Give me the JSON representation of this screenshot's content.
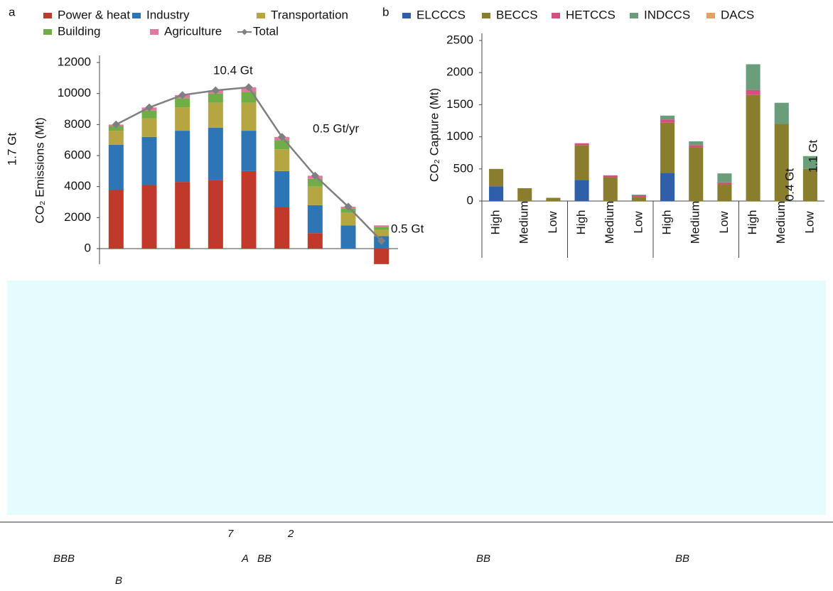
{
  "chart_data": [
    {
      "type": "bar",
      "panel": "a",
      "stacked": true,
      "ylabel": "CO₂ Emissions (Mt)",
      "categories": [
        null,
        null,
        null,
        null,
        null,
        null,
        null,
        null,
        null
      ],
      "series": [
        {
          "name": "Power & heat",
          "color": "#c0392b",
          "values": [
            3800,
            4100,
            4300,
            4400,
            5000,
            2700,
            1000,
            0,
            -1000
          ]
        },
        {
          "name": "Industry",
          "color": "#2e75b6",
          "values": [
            2900,
            3100,
            3300,
            3400,
            2600,
            2300,
            1800,
            1500,
            800
          ]
        },
        {
          "name": "Transportation",
          "color": "#b5a642",
          "values": [
            900,
            1200,
            1500,
            1600,
            1800,
            1400,
            1200,
            800,
            400
          ]
        },
        {
          "name": "Building",
          "color": "#70ad47",
          "values": [
            300,
            500,
            600,
            600,
            700,
            600,
            500,
            300,
            200
          ]
        },
        {
          "name": "Agriculture",
          "color": "#e377a0",
          "values": [
            100,
            200,
            200,
            200,
            300,
            200,
            200,
            100,
            100
          ]
        },
        {
          "name": "Total",
          "color": "#7f7f7f",
          "mark": "line",
          "values": [
            8000,
            9100,
            9900,
            10200,
            10400,
            7200,
            4700,
            2700,
            500
          ]
        }
      ],
      "ylim": [
        -1000,
        12000
      ],
      "yticks": [
        0,
        2000,
        4000,
        6000,
        8000,
        10000,
        12000
      ],
      "annotations": [
        "10.4 Gt",
        "0.5 Gt/yr",
        "0.5 Gt",
        "1.7 Gt"
      ]
    },
    {
      "type": "bar",
      "panel": "b",
      "stacked": true,
      "ylabel": "CO₂ Capture (Mt)",
      "categories": [
        "High",
        "Medium",
        "Low",
        "High",
        "Medium",
        "Low",
        "High",
        "Medium",
        "Low",
        "High",
        "Medium",
        "Low"
      ],
      "series": [
        {
          "name": "ELCCCS",
          "color": "#2e5fa8",
          "values": [
            230,
            0,
            0,
            330,
            0,
            0,
            440,
            0,
            0,
            0,
            0,
            0
          ]
        },
        {
          "name": "BECCS",
          "color": "#8b7d2e",
          "values": [
            270,
            200,
            50,
            540,
            370,
            60,
            780,
            830,
            260,
            1650,
            1200,
            500
          ]
        },
        {
          "name": "HETCCS",
          "color": "#d94f7c",
          "values": [
            0,
            0,
            0,
            30,
            30,
            30,
            50,
            40,
            30,
            80,
            0,
            0
          ]
        },
        {
          "name": "INDCCS",
          "color": "#6a9e7a",
          "values": [
            0,
            0,
            0,
            0,
            0,
            10,
            60,
            60,
            140,
            400,
            330,
            200
          ]
        },
        {
          "name": "DACS",
          "color": "#e8a060",
          "values": [
            0,
            0,
            0,
            0,
            0,
            0,
            0,
            0,
            0,
            0,
            0,
            0
          ]
        }
      ],
      "ylim": [
        0,
        2500
      ],
      "yticks": [
        0,
        500,
        1000,
        1500,
        2000,
        2500
      ],
      "annotations": [
        "0.4 Gt",
        "1.1 Gt"
      ]
    }
  ],
  "panel_labels": [
    "a",
    "b"
  ],
  "fragments": [
    "7",
    "2",
    "BBB",
    "A",
    "BB",
    "BB",
    "BB",
    "B"
  ]
}
